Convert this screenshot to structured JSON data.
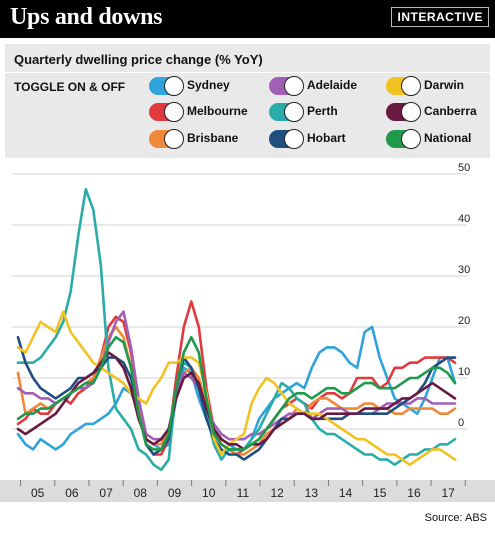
{
  "header": {
    "title": "Ups and downs",
    "badge": "INTERACTIVE"
  },
  "subtitle": "Quarterly dwelling price change (% YoY)",
  "toggle_label": "TOGGLE ON & OFF",
  "legend": [
    {
      "name": "Sydney",
      "color": "#2ea3dc",
      "icon": "toggle-switch-icon"
    },
    {
      "name": "Adelaide",
      "color": "#a25fb6",
      "icon": "toggle-switch-icon"
    },
    {
      "name": "Darwin",
      "color": "#f2c222",
      "icon": "toggle-switch-icon"
    },
    {
      "name": "Melbourne",
      "color": "#e03a3e",
      "icon": "toggle-switch-icon"
    },
    {
      "name": "Perth",
      "color": "#2aaca8",
      "icon": "toggle-switch-icon"
    },
    {
      "name": "Canberra",
      "color": "#6a1a42",
      "icon": "toggle-switch-icon"
    },
    {
      "name": "Brisbane",
      "color": "#f0883a",
      "icon": "toggle-switch-icon"
    },
    {
      "name": "Hobart",
      "color": "#1f4f7f",
      "icon": "toggle-switch-icon"
    },
    {
      "name": "National",
      "color": "#1f9a4a",
      "icon": "toggle-switch-icon"
    }
  ],
  "source": "Source: ABS",
  "chart_data": {
    "type": "line",
    "x_labels": [
      "05",
      "06",
      "07",
      "08",
      "09",
      "10",
      "11",
      "12",
      "13",
      "14",
      "15",
      "16",
      "17"
    ],
    "y_ticks": [
      0,
      10,
      20,
      30,
      40,
      50
    ],
    "ylim": [
      -10,
      50
    ],
    "grid": true,
    "series": [
      {
        "name": "Sydney",
        "color": "#2ea3dc",
        "values": [
          -1,
          -3,
          -4,
          -2,
          -3,
          -4,
          -3,
          -1,
          0,
          1,
          1,
          2,
          3,
          5,
          8,
          7,
          4,
          -2,
          -3,
          -4,
          -3,
          6,
          12,
          11,
          6,
          2,
          0,
          -2,
          -3,
          -4,
          -4,
          -2,
          2,
          4,
          6,
          7,
          8,
          9,
          8,
          12,
          15,
          16,
          16,
          15,
          13,
          12,
          19,
          20,
          14,
          10,
          6,
          5,
          4,
          3,
          6,
          10,
          14,
          14,
          9
        ]
      },
      {
        "name": "Melbourne",
        "color": "#e03a3e",
        "values": [
          1,
          2,
          4,
          3,
          3,
          5,
          6,
          5,
          7,
          8,
          10,
          14,
          20,
          22,
          21,
          15,
          5,
          -3,
          -5,
          -5,
          -2,
          10,
          20,
          25,
          20,
          8,
          0,
          -3,
          -4,
          -5,
          -4,
          -3,
          -2,
          0,
          2,
          4,
          5,
          6,
          5,
          4,
          6,
          7,
          7,
          6,
          7,
          10,
          10,
          10,
          8,
          9,
          12,
          12,
          13,
          13,
          14,
          14,
          14,
          14,
          13
        ]
      },
      {
        "name": "Brisbane",
        "color": "#f0883a",
        "values": [
          11,
          3,
          4,
          5,
          4,
          5,
          6,
          7,
          8,
          9,
          10,
          14,
          18,
          20,
          18,
          12,
          4,
          -2,
          -3,
          -3,
          0,
          7,
          11,
          12,
          10,
          5,
          -1,
          -3,
          -4,
          -5,
          -5,
          -4,
          -3,
          -1,
          0,
          1,
          2,
          4,
          3,
          5,
          6,
          6,
          5,
          4,
          4,
          4,
          5,
          5,
          4,
          4,
          3,
          3,
          4,
          4,
          4,
          4,
          3,
          3,
          4
        ]
      },
      {
        "name": "Adelaide",
        "color": "#a25fb6",
        "values": [
          8,
          7,
          7,
          6,
          6,
          5,
          6,
          7,
          8,
          8,
          9,
          12,
          17,
          21,
          23,
          16,
          6,
          -1,
          -2,
          -2,
          0,
          7,
          11,
          10,
          8,
          4,
          1,
          -1,
          -2,
          -2,
          -2,
          -1,
          -1,
          0,
          1,
          2,
          3,
          3,
          3,
          2,
          3,
          4,
          4,
          4,
          3,
          3,
          3,
          3,
          4,
          5,
          5,
          5,
          5,
          6,
          6,
          5,
          5,
          5,
          5
        ]
      },
      {
        "name": "Perth",
        "color": "#2aaca8",
        "values": [
          13,
          13,
          13,
          14,
          16,
          18,
          21,
          27,
          38,
          47,
          43,
          32,
          12,
          4,
          2,
          0,
          -4,
          -5,
          -7,
          -8,
          -6,
          8,
          13,
          12,
          8,
          3,
          -3,
          -6,
          -4,
          -4,
          -4,
          -2,
          0,
          3,
          6,
          9,
          8,
          6,
          5,
          2,
          0,
          -1,
          -1,
          -2,
          -3,
          -4,
          -5,
          -5,
          -6,
          -6,
          -7,
          -6,
          -5,
          -5,
          -4,
          -4,
          -3,
          -3,
          -2
        ]
      },
      {
        "name": "Hobart",
        "color": "#1f4f7f",
        "values": [
          18,
          13,
          10,
          8,
          7,
          6,
          7,
          8,
          10,
          10,
          11,
          12,
          14,
          14,
          13,
          10,
          3,
          -3,
          -5,
          -4,
          -2,
          8,
          14,
          12,
          8,
          2,
          -2,
          -4,
          -5,
          -5,
          -6,
          -5,
          -4,
          -2,
          0,
          2,
          2,
          3,
          3,
          2,
          2,
          2,
          2,
          2,
          3,
          3,
          3,
          3,
          3,
          3,
          4,
          5,
          6,
          7,
          9,
          12,
          13,
          14,
          14
        ]
      },
      {
        "name": "Darwin",
        "color": "#f2c222",
        "values": [
          16,
          15,
          18,
          21,
          20,
          19,
          23,
          19,
          17,
          15,
          13,
          12,
          11,
          10,
          9,
          7,
          6,
          5,
          8,
          10,
          13,
          13,
          14,
          14,
          13,
          7,
          -2,
          -5,
          -3,
          -2,
          -1,
          5,
          8,
          10,
          9,
          7,
          5,
          4,
          3,
          3,
          3,
          2,
          1,
          0,
          -1,
          -2,
          -2,
          -3,
          -4,
          -5,
          -5,
          -6,
          -7,
          -6,
          -5,
          -4,
          -4,
          -5,
          -6
        ]
      },
      {
        "name": "Canberra",
        "color": "#6a1a42",
        "values": [
          0,
          -1,
          0,
          1,
          2,
          3,
          5,
          7,
          9,
          10,
          11,
          13,
          15,
          14,
          12,
          8,
          2,
          -2,
          -3,
          -2,
          0,
          6,
          10,
          11,
          9,
          4,
          0,
          -2,
          -3,
          -3,
          -4,
          -3,
          -3,
          -2,
          0,
          1,
          2,
          3,
          3,
          2,
          2,
          3,
          3,
          3,
          3,
          3,
          4,
          4,
          4,
          4,
          5,
          6,
          6,
          7,
          8,
          9,
          8,
          7,
          6
        ]
      },
      {
        "name": "National",
        "color": "#1f9a4a",
        "values": [
          2,
          3,
          3,
          4,
          4,
          5,
          6,
          7,
          8,
          9,
          9,
          12,
          16,
          18,
          17,
          12,
          3,
          -3,
          -4,
          -4,
          -1,
          8,
          15,
          18,
          15,
          6,
          -1,
          -3,
          -4,
          -4,
          -4,
          -3,
          -2,
          0,
          2,
          4,
          6,
          7,
          7,
          6,
          7,
          8,
          8,
          7,
          7,
          8,
          9,
          9,
          8,
          8,
          8,
          9,
          10,
          10,
          11,
          12,
          12,
          11,
          9
        ]
      }
    ]
  }
}
